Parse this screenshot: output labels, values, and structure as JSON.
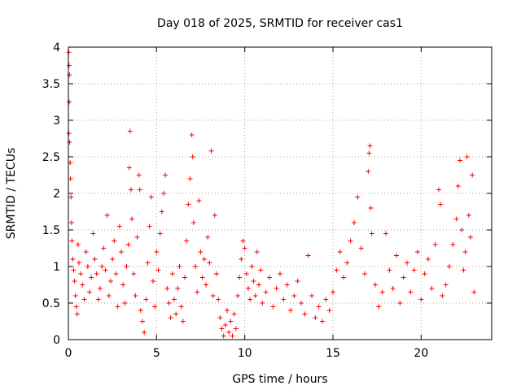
{
  "chart_data": {
    "type": "scatter",
    "title": "Day 018 of 2025, SRMTID for receiver cas1",
    "xlabel": "GPS time / hours",
    "ylabel": "SRMTID / TECUs",
    "xlim": [
      0,
      24
    ],
    "ylim": [
      0,
      4
    ],
    "xticks": [
      0,
      5,
      10,
      15,
      20
    ],
    "xtick_labels": [
      "0",
      "5",
      "10",
      "15",
      "20"
    ],
    "yticks": [
      0,
      0.5,
      1,
      1.5,
      2,
      2.5,
      3,
      3.5,
      4
    ],
    "ytick_labels": [
      "0",
      "0.5",
      "1",
      "1.5",
      "2",
      "2.5",
      "3",
      "3.5",
      "4"
    ],
    "grid": true,
    "marker": "+",
    "color": "#ff0000",
    "series": [
      {
        "name": "SRMTID",
        "points": [
          [
            0.02,
            3.93
          ],
          [
            0.04,
            3.75
          ],
          [
            0.06,
            3.62
          ],
          [
            0.05,
            3.25
          ],
          [
            0.03,
            2.82
          ],
          [
            0.07,
            2.7
          ],
          [
            0.1,
            2.42
          ],
          [
            0.12,
            2.2
          ],
          [
            0.15,
            1.95
          ],
          [
            0.18,
            1.6
          ],
          [
            0.2,
            1.35
          ],
          [
            0.25,
            1.1
          ],
          [
            0.3,
            0.95
          ],
          [
            0.35,
            0.8
          ],
          [
            0.4,
            0.6
          ],
          [
            0.45,
            0.45
          ],
          [
            0.5,
            0.35
          ],
          [
            0.55,
            1.3
          ],
          [
            0.6,
            1.05
          ],
          [
            0.7,
            0.9
          ],
          [
            0.8,
            0.75
          ],
          [
            0.9,
            0.55
          ],
          [
            1.0,
            1.2
          ],
          [
            1.1,
            1.0
          ],
          [
            1.2,
            0.65
          ],
          [
            1.3,
            0.85
          ],
          [
            1.4,
            1.45
          ],
          [
            1.5,
            1.1
          ],
          [
            1.6,
            0.9
          ],
          [
            1.7,
            0.55
          ],
          [
            1.8,
            0.7
          ],
          [
            1.9,
            1.0
          ],
          [
            2.0,
            1.25
          ],
          [
            2.1,
            0.95
          ],
          [
            2.2,
            1.7
          ],
          [
            2.3,
            0.6
          ],
          [
            2.4,
            0.8
          ],
          [
            2.5,
            1.1
          ],
          [
            2.6,
            1.35
          ],
          [
            2.7,
            0.9
          ],
          [
            2.8,
            0.45
          ],
          [
            2.9,
            1.55
          ],
          [
            3.0,
            1.2
          ],
          [
            3.1,
            0.75
          ],
          [
            3.2,
            0.5
          ],
          [
            3.3,
            1.0
          ],
          [
            3.4,
            1.3
          ],
          [
            3.45,
            2.35
          ],
          [
            3.5,
            2.85
          ],
          [
            3.55,
            2.05
          ],
          [
            3.6,
            1.65
          ],
          [
            3.7,
            0.9
          ],
          [
            3.8,
            0.6
          ],
          [
            3.9,
            1.4
          ],
          [
            4.0,
            2.25
          ],
          [
            4.05,
            2.05
          ],
          [
            4.1,
            0.4
          ],
          [
            4.2,
            0.25
          ],
          [
            4.3,
            0.1
          ],
          [
            4.4,
            0.55
          ],
          [
            4.5,
            1.05
          ],
          [
            4.6,
            1.55
          ],
          [
            4.7,
            1.95
          ],
          [
            4.8,
            0.8
          ],
          [
            4.9,
            0.45
          ],
          [
            5.0,
            1.2
          ],
          [
            5.1,
            0.95
          ],
          [
            5.2,
            1.45
          ],
          [
            5.3,
            1.75
          ],
          [
            5.4,
            2.0
          ],
          [
            5.5,
            2.25
          ],
          [
            5.6,
            0.7
          ],
          [
            5.7,
            0.5
          ],
          [
            5.8,
            0.3
          ],
          [
            5.9,
            0.9
          ],
          [
            6.0,
            0.55
          ],
          [
            6.1,
            0.35
          ],
          [
            6.2,
            0.7
          ],
          [
            6.3,
            1.0
          ],
          [
            6.4,
            0.45
          ],
          [
            6.5,
            0.25
          ],
          [
            6.6,
            0.85
          ],
          [
            6.7,
            1.35
          ],
          [
            6.8,
            1.85
          ],
          [
            6.9,
            2.2
          ],
          [
            7.0,
            2.8
          ],
          [
            7.05,
            2.5
          ],
          [
            7.1,
            1.6
          ],
          [
            7.2,
            1.0
          ],
          [
            7.3,
            0.65
          ],
          [
            7.4,
            1.9
          ],
          [
            7.5,
            1.2
          ],
          [
            7.6,
            0.85
          ],
          [
            7.7,
            1.1
          ],
          [
            7.8,
            0.75
          ],
          [
            7.9,
            1.4
          ],
          [
            8.0,
            1.05
          ],
          [
            8.1,
            2.58
          ],
          [
            8.2,
            0.6
          ],
          [
            8.3,
            1.7
          ],
          [
            8.4,
            0.9
          ],
          [
            8.5,
            0.55
          ],
          [
            8.6,
            0.3
          ],
          [
            8.7,
            0.15
          ],
          [
            8.8,
            0.05
          ],
          [
            8.9,
            0.2
          ],
          [
            9.0,
            0.4
          ],
          [
            9.1,
            0.1
          ],
          [
            9.2,
            0.25
          ],
          [
            9.3,
            0.05
          ],
          [
            9.4,
            0.35
          ],
          [
            9.5,
            0.15
          ],
          [
            9.6,
            0.6
          ],
          [
            9.7,
            0.85
          ],
          [
            9.8,
            1.1
          ],
          [
            9.9,
            1.35
          ],
          [
            10.0,
            1.25
          ],
          [
            10.1,
            0.9
          ],
          [
            10.2,
            0.7
          ],
          [
            10.3,
            0.55
          ],
          [
            10.4,
            1.0
          ],
          [
            10.5,
            0.8
          ],
          [
            10.6,
            0.6
          ],
          [
            10.7,
            1.2
          ],
          [
            10.8,
            0.75
          ],
          [
            10.9,
            0.95
          ],
          [
            11.0,
            0.5
          ],
          [
            11.2,
            0.65
          ],
          [
            11.4,
            0.85
          ],
          [
            11.6,
            0.45
          ],
          [
            11.8,
            0.7
          ],
          [
            12.0,
            0.9
          ],
          [
            12.2,
            0.55
          ],
          [
            12.4,
            0.75
          ],
          [
            12.6,
            0.4
          ],
          [
            12.8,
            0.6
          ],
          [
            13.0,
            0.8
          ],
          [
            13.2,
            0.5
          ],
          [
            13.4,
            0.35
          ],
          [
            13.6,
            1.15
          ],
          [
            13.8,
            0.6
          ],
          [
            14.0,
            0.3
          ],
          [
            14.2,
            0.45
          ],
          [
            14.4,
            0.25
          ],
          [
            14.6,
            0.55
          ],
          [
            14.8,
            0.4
          ],
          [
            15.0,
            0.65
          ],
          [
            15.2,
            0.95
          ],
          [
            15.4,
            1.2
          ],
          [
            15.6,
            0.85
          ],
          [
            15.8,
            1.05
          ],
          [
            16.0,
            1.35
          ],
          [
            16.2,
            1.6
          ],
          [
            16.4,
            1.95
          ],
          [
            16.6,
            1.25
          ],
          [
            16.8,
            0.9
          ],
          [
            17.0,
            2.3
          ],
          [
            17.05,
            2.55
          ],
          [
            17.1,
            2.65
          ],
          [
            17.15,
            1.8
          ],
          [
            17.2,
            1.45
          ],
          [
            17.4,
            0.75
          ],
          [
            17.6,
            0.45
          ],
          [
            17.8,
            0.65
          ],
          [
            18.0,
            1.45
          ],
          [
            18.2,
            0.95
          ],
          [
            18.4,
            0.7
          ],
          [
            18.6,
            1.15
          ],
          [
            18.8,
            0.5
          ],
          [
            19.0,
            0.85
          ],
          [
            19.2,
            1.05
          ],
          [
            19.4,
            0.65
          ],
          [
            19.6,
            0.95
          ],
          [
            19.8,
            1.2
          ],
          [
            20.0,
            0.55
          ],
          [
            20.2,
            0.9
          ],
          [
            20.4,
            1.1
          ],
          [
            20.6,
            0.7
          ],
          [
            20.8,
            1.3
          ],
          [
            21.0,
            2.05
          ],
          [
            21.1,
            1.85
          ],
          [
            21.2,
            0.6
          ],
          [
            21.4,
            0.75
          ],
          [
            21.6,
            1.0
          ],
          [
            21.8,
            1.3
          ],
          [
            22.0,
            1.65
          ],
          [
            22.1,
            2.1
          ],
          [
            22.2,
            2.45
          ],
          [
            22.3,
            1.5
          ],
          [
            22.4,
            0.95
          ],
          [
            22.5,
            1.2
          ],
          [
            22.6,
            2.5
          ],
          [
            22.7,
            1.7
          ],
          [
            22.8,
            1.4
          ],
          [
            22.9,
            2.25
          ],
          [
            23.0,
            0.65
          ]
        ]
      }
    ]
  }
}
